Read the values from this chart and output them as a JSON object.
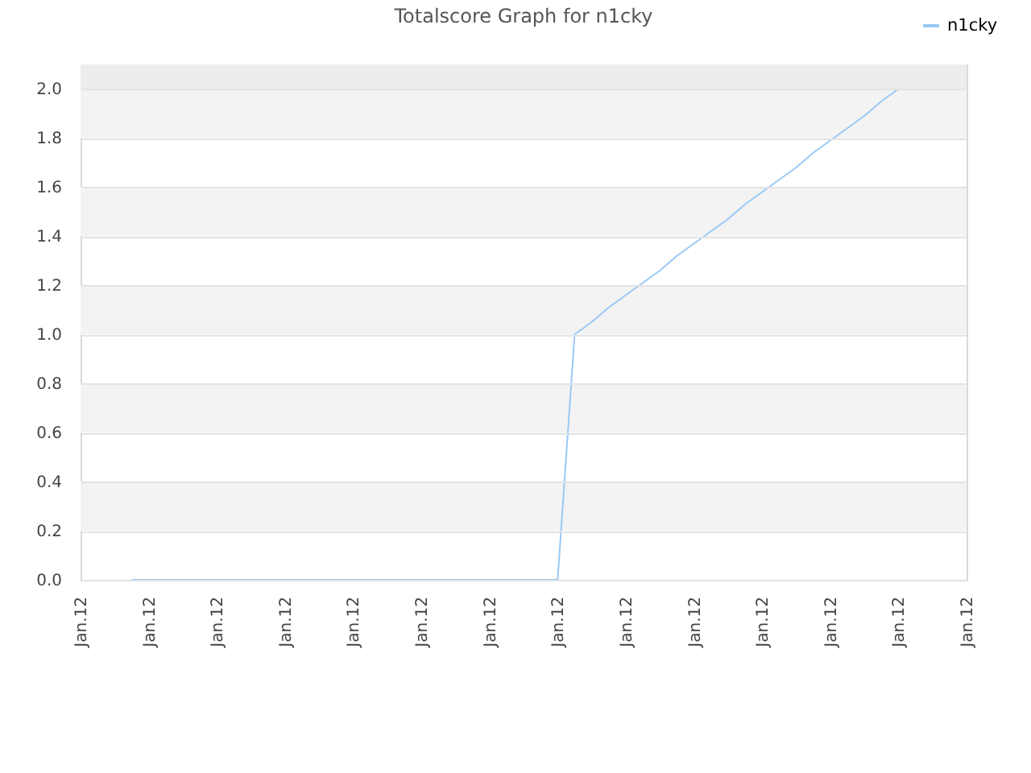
{
  "chart_data": {
    "type": "line",
    "title": "Totalscore Graph for n1cky",
    "categories": [
      "Jan.12",
      null,
      null,
      null,
      "Jan.12",
      null,
      null,
      null,
      "Jan.12",
      null,
      null,
      null,
      "Jan.12",
      null,
      null,
      null,
      "Jan.12",
      null,
      null,
      null,
      "Jan.12",
      null,
      null,
      null,
      "Jan.12",
      null,
      null,
      null,
      "Jan.12",
      null,
      null,
      null,
      "Jan.12",
      null,
      null,
      null,
      "Jan.12",
      null,
      null,
      null,
      "Jan.12",
      null,
      null,
      null,
      "Jan.12",
      null,
      null,
      null,
      "Jan.12",
      null,
      null,
      null,
      "Jan.12"
    ],
    "series": [
      {
        "name": "n1cky",
        "color": "#99c9f5",
        "values": [
          null,
          null,
          null,
          0,
          0,
          0,
          0,
          0,
          0,
          0,
          0,
          0,
          0,
          0,
          0,
          0,
          0,
          0,
          0,
          0,
          0,
          0,
          0,
          0,
          0,
          0,
          0,
          0,
          0,
          1.0,
          1.05,
          1.11,
          1.16,
          1.21,
          1.26,
          1.32,
          1.37,
          1.42,
          1.47,
          1.53,
          1.58,
          1.63,
          1.68,
          1.74,
          1.79,
          1.84,
          1.89,
          1.95,
          2.0,
          null,
          null,
          null,
          null
        ]
      }
    ],
    "ylim": [
      0,
      2.1
    ],
    "yticks": [
      {
        "value": 0,
        "label": "0.0"
      },
      {
        "value": 0.2,
        "label": "0.2"
      },
      {
        "value": 0.4,
        "label": "0.4"
      },
      {
        "value": 0.6,
        "label": "0.6"
      },
      {
        "value": 0.8,
        "label": "0.8"
      },
      {
        "value": 1.0,
        "label": "1.0"
      },
      {
        "value": 1.2,
        "label": "1.2"
      },
      {
        "value": 1.4,
        "label": "1.4"
      },
      {
        "value": 1.6,
        "label": "1.6"
      },
      {
        "value": 1.8,
        "label": "1.8"
      },
      {
        "value": 2.0,
        "label": "2.0"
      }
    ],
    "grid": "y",
    "legend": "top right",
    "marker": "none",
    "line_style": "solid",
    "bands": [
      {
        "axis": "y",
        "from": 0.2,
        "to": 0.4,
        "color": "#f3f3f3"
      },
      {
        "axis": "y",
        "from": 0.6,
        "to": 0.8,
        "color": "#f3f3f3"
      },
      {
        "axis": "y",
        "from": 1.0,
        "to": 1.2,
        "color": "#f3f3f3"
      },
      {
        "axis": "y",
        "from": 1.4,
        "to": 1.6,
        "color": "#f3f3f3"
      },
      {
        "axis": "y",
        "from": 1.8,
        "to": 2.0,
        "color": "#f3f3f3"
      },
      {
        "axis": "y",
        "from": 2.0,
        "to": 2.1,
        "color": "#ededed"
      }
    ]
  }
}
